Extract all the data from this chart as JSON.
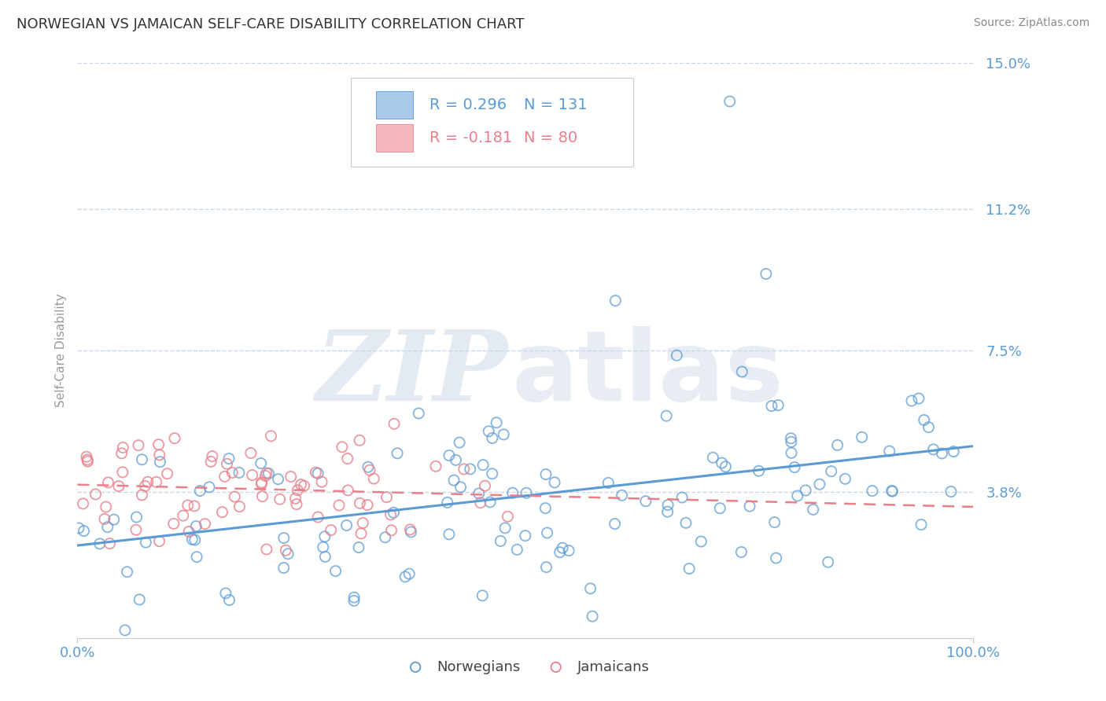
{
  "title": "NORWEGIAN VS JAMAICAN SELF-CARE DISABILITY CORRELATION CHART",
  "source": "Source: ZipAtlas.com",
  "ylabel": "Self-Care Disability",
  "xlim": [
    0.0,
    100.0
  ],
  "ylim": [
    0.0,
    15.0
  ],
  "yticks": [
    3.8,
    7.5,
    11.2,
    15.0
  ],
  "ytick_labels": [
    "3.8%",
    "7.5%",
    "11.2%",
    "15.0%"
  ],
  "xticks": [
    0.0,
    100.0
  ],
  "xtick_labels": [
    "0.0%",
    "100.0%"
  ],
  "norwegian_color": "#5b9bd5",
  "norwegian_patch_color": "#aac8ea",
  "jamaican_color": "#e87f8a",
  "jamaican_patch_color": "#f4b8be",
  "norwegian_R": 0.296,
  "norwegian_N": 131,
  "jamaican_R": -0.181,
  "jamaican_N": 80,
  "watermark_zip": "ZIP",
  "watermark_atlas": "atlas",
  "background_color": "#ffffff",
  "grid_color": "#c8d8e8",
  "title_color": "#333333",
  "tick_label_color": "#5b9bd5",
  "legend_label_norwegian": "Norwegians",
  "legend_label_jamaican": "Jamaicans"
}
